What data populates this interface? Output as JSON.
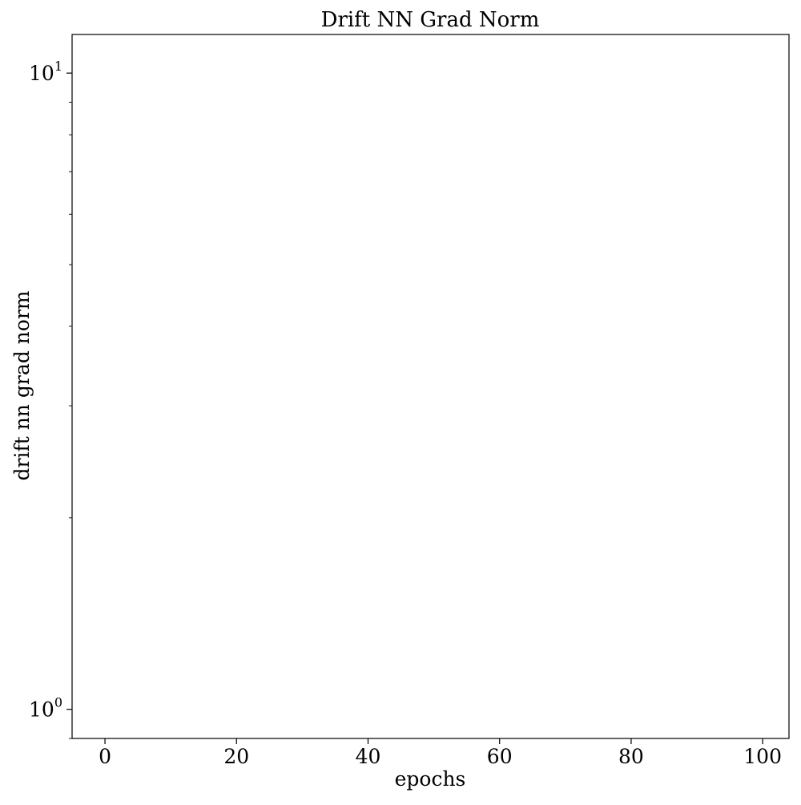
{
  "chart_data": {
    "type": "line",
    "title": "Drift NN Grad Norm",
    "xlabel": "epochs",
    "ylabel": "drift nn grad norm",
    "xlim": [
      -5,
      104
    ],
    "ylim": [
      0.9,
      11.5
    ],
    "yscale": "log",
    "x_ticks": [
      0,
      20,
      40,
      60,
      80,
      100
    ],
    "x_tick_labels": [
      "0",
      "20",
      "40",
      "60",
      "80",
      "100"
    ],
    "y_major_ticks": [
      1,
      10
    ],
    "y_major_tick_labels": [
      {
        "base": "10",
        "exponent": "0"
      },
      {
        "base": "10",
        "exponent": "1"
      }
    ],
    "y_minor_ticks": [
      0.9,
      2,
      3,
      4,
      5,
      6,
      7,
      8,
      9
    ],
    "grid": false,
    "series": []
  }
}
